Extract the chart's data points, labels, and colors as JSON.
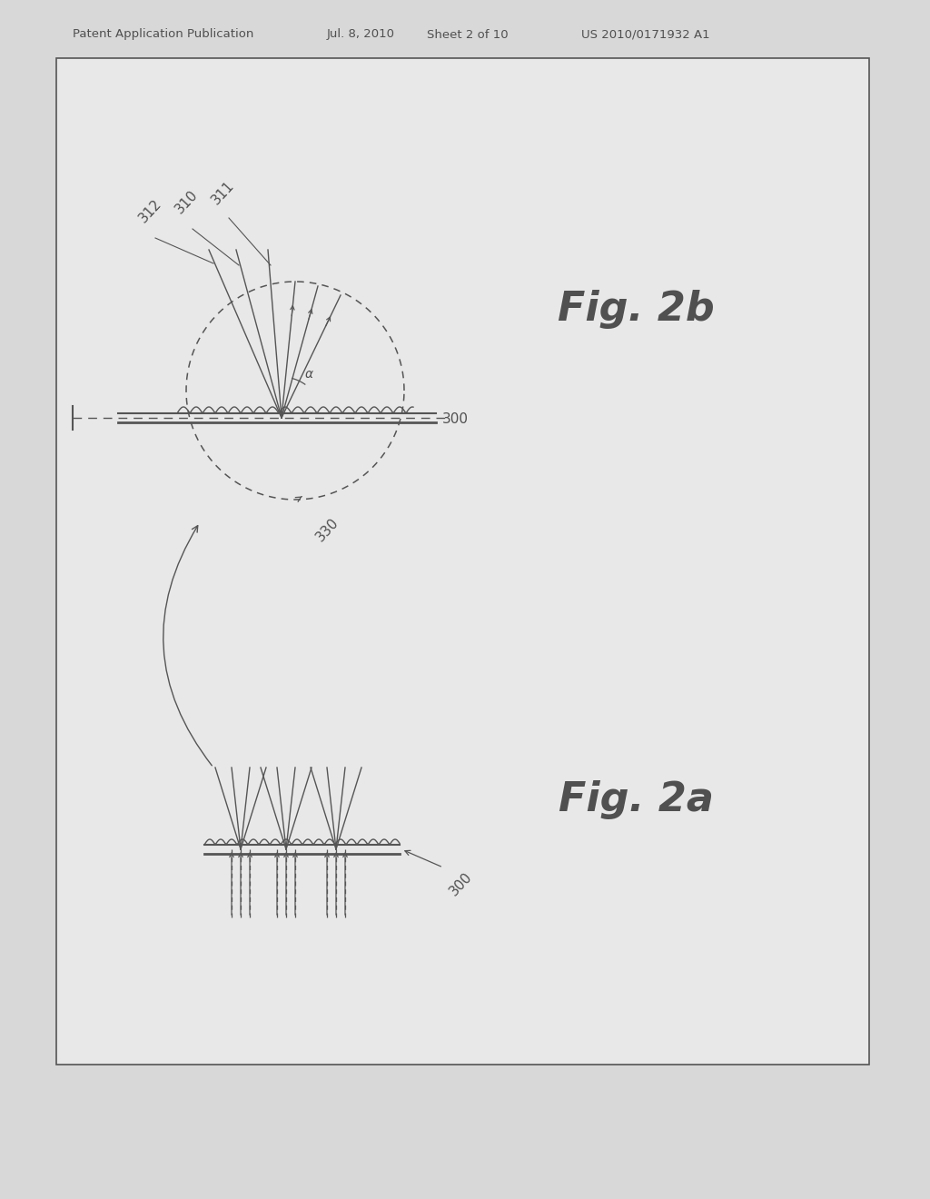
{
  "bg_color": "#d8d8d8",
  "inner_bg_color": "#e8e8e8",
  "line_color": "#555555",
  "text_color": "#505050",
  "header_text": "Patent Application Publication",
  "header_date": "Jul. 8, 2010",
  "header_sheet": "Sheet 2 of 10",
  "header_patent": "US 2010/0171932 A1",
  "fig2b_label": "Fig. 2b",
  "fig2a_label": "Fig. 2a",
  "label_300_top": "300",
  "label_310": "310",
  "label_311": "311",
  "label_312": "312",
  "label_330": "330",
  "label_300_bot": "300",
  "alpha_label": "α"
}
